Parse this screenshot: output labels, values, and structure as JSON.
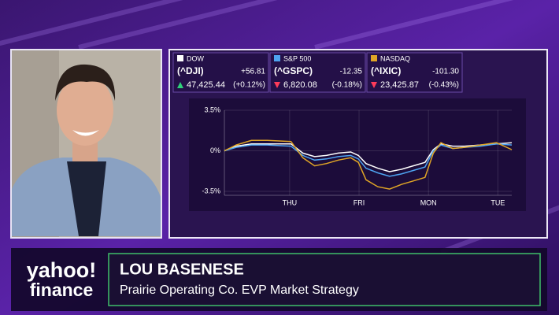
{
  "chart_data": {
    "type": "line",
    "x": [
      0.06,
      0.23,
      0.45,
      0.68,
      1.02,
      1.19,
      1.36,
      1.53,
      1.7,
      1.88,
      1.99,
      2.1,
      2.27,
      2.44,
      2.61,
      2.78,
      2.95,
      3.07,
      3.18,
      3.35,
      3.52,
      3.75,
      3.98,
      4.2
    ],
    "xlim": [
      0.06,
      4.2
    ],
    "xticks": [
      {
        "value": 1,
        "label": "THU"
      },
      {
        "value": 2,
        "label": "FRI"
      },
      {
        "value": 3,
        "label": "MON"
      },
      {
        "value": 4,
        "label": "TUE"
      }
    ],
    "ylim": [
      -3.5,
      3.5
    ],
    "yticks": [
      {
        "value": 3.5,
        "label": "3.5%"
      },
      {
        "value": 0,
        "label": "0%"
      },
      {
        "value": -3.5,
        "label": "-3.5%"
      }
    ],
    "series": [
      {
        "name": "DOW",
        "color": "#ffffff",
        "values": [
          0,
          0.4,
          0.6,
          0.6,
          0.6,
          -0.2,
          -0.5,
          -0.4,
          -0.2,
          -0.1,
          -0.4,
          -1.1,
          -1.5,
          -1.8,
          -1.6,
          -1.3,
          -1.0,
          0.1,
          0.6,
          0.4,
          0.4,
          0.5,
          0.6,
          0.7
        ]
      },
      {
        "name": "S&P 500",
        "color": "#4ea3f0",
        "values": [
          0,
          0.3,
          0.5,
          0.5,
          0.4,
          -0.4,
          -0.8,
          -0.7,
          -0.5,
          -0.4,
          -0.7,
          -1.5,
          -1.9,
          -2.2,
          -2.0,
          -1.7,
          -1.4,
          0.0,
          0.5,
          0.2,
          0.3,
          0.4,
          0.6,
          0.5
        ]
      },
      {
        "name": "NASDAQ",
        "color": "#e0a526",
        "values": [
          0,
          0.5,
          0.9,
          0.9,
          0.8,
          -0.6,
          -1.3,
          -1.1,
          -0.8,
          -0.6,
          -1.0,
          -2.5,
          -3.1,
          -3.3,
          -2.9,
          -2.6,
          -2.3,
          -0.2,
          0.7,
          0.2,
          0.3,
          0.5,
          0.7,
          0.1
        ]
      }
    ]
  },
  "tickers": [
    {
      "symbol": "(^DJI)",
      "price": "47,425.44",
      "change": "+56.81",
      "change_pct": "(+0.12%)",
      "direction": "up"
    },
    {
      "symbol": "(^GSPC)",
      "price": "6,820.08",
      "change": "-12.35",
      "change_pct": "(-0.18%)",
      "direction": "down"
    },
    {
      "symbol": "(^IXIC)",
      "price": "23,425.87",
      "change": "-101.30",
      "change_pct": "(-0.43%)",
      "direction": "down"
    }
  ],
  "lower_third": {
    "logo_top": "yahoo!",
    "logo_bottom": "finance",
    "name": "LOU BASENESE",
    "title": "Prairie Operating Co. EVP Market Strategy"
  }
}
